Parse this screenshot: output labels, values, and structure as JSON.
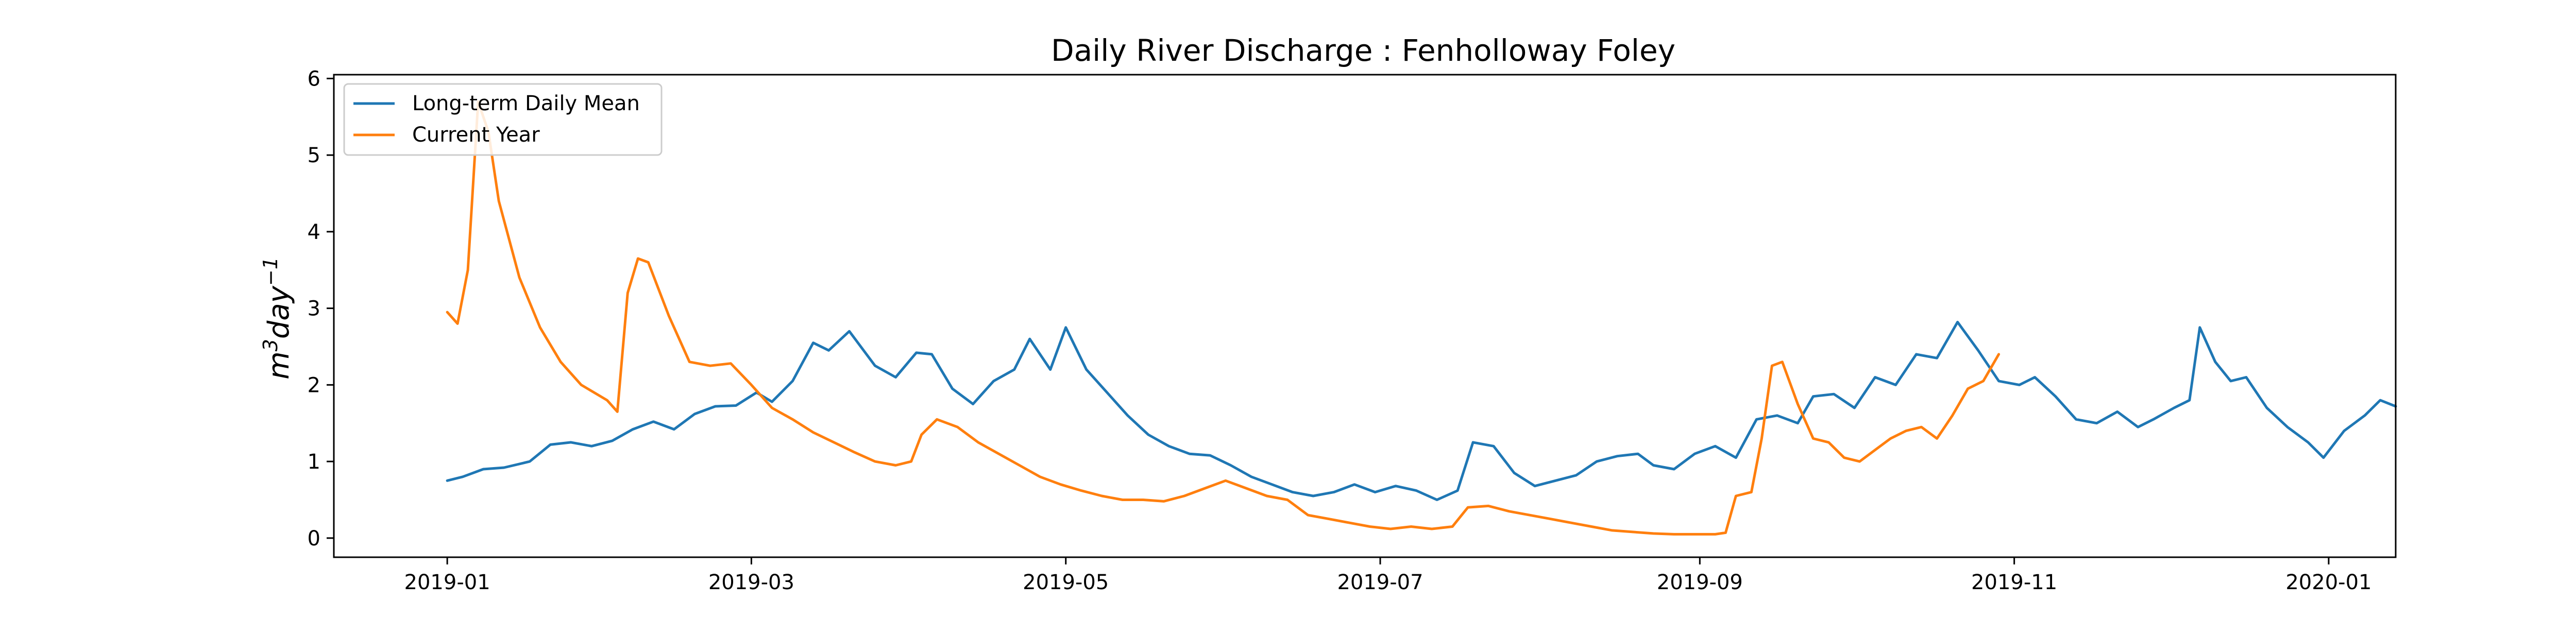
{
  "chart_data": {
    "type": "line",
    "title": "Daily River Discharge : Fenholloway Foley",
    "ylabel_base": "m",
    "ylabel_sup1": "3",
    "ylabel_mid": "day",
    "ylabel_sup2": "−1",
    "xlim": [
      "2018-12-10",
      "2020-01-14"
    ],
    "ylim": [
      -0.25,
      6.05
    ],
    "x_ticks": [
      "2019-01",
      "2019-03",
      "2019-05",
      "2019-07",
      "2019-09",
      "2019-11",
      "2020-01"
    ],
    "y_ticks": [
      "0",
      "1",
      "2",
      "3",
      "4",
      "5",
      "6"
    ],
    "legend_position": "upper-left",
    "series": [
      {
        "name": "Long-term Daily Mean",
        "color": "#1f77b4",
        "points": [
          [
            "2019-01-01",
            0.75
          ],
          [
            "2019-01-04",
            0.8
          ],
          [
            "2019-01-08",
            0.9
          ],
          [
            "2019-01-12",
            0.92
          ],
          [
            "2019-01-17",
            1.0
          ],
          [
            "2019-01-21",
            1.22
          ],
          [
            "2019-01-25",
            1.25
          ],
          [
            "2019-01-29",
            1.2
          ],
          [
            "2019-02-02",
            1.27
          ],
          [
            "2019-02-06",
            1.42
          ],
          [
            "2019-02-10",
            1.52
          ],
          [
            "2019-02-14",
            1.42
          ],
          [
            "2019-02-18",
            1.62
          ],
          [
            "2019-02-22",
            1.72
          ],
          [
            "2019-02-26",
            1.73
          ],
          [
            "2019-03-02",
            1.9
          ],
          [
            "2019-03-05",
            1.78
          ],
          [
            "2019-03-09",
            2.05
          ],
          [
            "2019-03-13",
            2.55
          ],
          [
            "2019-03-16",
            2.45
          ],
          [
            "2019-03-20",
            2.7
          ],
          [
            "2019-03-25",
            2.25
          ],
          [
            "2019-03-29",
            2.1
          ],
          [
            "2019-04-02",
            2.42
          ],
          [
            "2019-04-05",
            2.4
          ],
          [
            "2019-04-09",
            1.95
          ],
          [
            "2019-04-13",
            1.75
          ],
          [
            "2019-04-17",
            2.05
          ],
          [
            "2019-04-21",
            2.2
          ],
          [
            "2019-04-24",
            2.6
          ],
          [
            "2019-04-28",
            2.2
          ],
          [
            "2019-05-01",
            2.75
          ],
          [
            "2019-05-05",
            2.2
          ],
          [
            "2019-05-09",
            1.9
          ],
          [
            "2019-05-13",
            1.6
          ],
          [
            "2019-05-17",
            1.35
          ],
          [
            "2019-05-21",
            1.2
          ],
          [
            "2019-05-25",
            1.1
          ],
          [
            "2019-05-29",
            1.08
          ],
          [
            "2019-06-02",
            0.95
          ],
          [
            "2019-06-06",
            0.8
          ],
          [
            "2019-06-10",
            0.7
          ],
          [
            "2019-06-14",
            0.6
          ],
          [
            "2019-06-18",
            0.55
          ],
          [
            "2019-06-22",
            0.6
          ],
          [
            "2019-06-26",
            0.7
          ],
          [
            "2019-06-30",
            0.6
          ],
          [
            "2019-07-04",
            0.68
          ],
          [
            "2019-07-08",
            0.62
          ],
          [
            "2019-07-12",
            0.5
          ],
          [
            "2019-07-16",
            0.62
          ],
          [
            "2019-07-19",
            1.25
          ],
          [
            "2019-07-23",
            1.2
          ],
          [
            "2019-07-27",
            0.85
          ],
          [
            "2019-07-31",
            0.68
          ],
          [
            "2019-08-04",
            0.75
          ],
          [
            "2019-08-08",
            0.82
          ],
          [
            "2019-08-12",
            1.0
          ],
          [
            "2019-08-16",
            1.07
          ],
          [
            "2019-08-20",
            1.1
          ],
          [
            "2019-08-23",
            0.95
          ],
          [
            "2019-08-27",
            0.9
          ],
          [
            "2019-08-31",
            1.1
          ],
          [
            "2019-09-04",
            1.2
          ],
          [
            "2019-09-08",
            1.05
          ],
          [
            "2019-09-12",
            1.55
          ],
          [
            "2019-09-16",
            1.6
          ],
          [
            "2019-09-20",
            1.5
          ],
          [
            "2019-09-23",
            1.85
          ],
          [
            "2019-09-27",
            1.88
          ],
          [
            "2019-10-01",
            1.7
          ],
          [
            "2019-10-05",
            2.1
          ],
          [
            "2019-10-09",
            2.0
          ],
          [
            "2019-10-13",
            2.4
          ],
          [
            "2019-10-17",
            2.35
          ],
          [
            "2019-10-21",
            2.82
          ],
          [
            "2019-10-25",
            2.45
          ],
          [
            "2019-10-29",
            2.05
          ],
          [
            "2019-11-02",
            2.0
          ],
          [
            "2019-11-05",
            2.1
          ],
          [
            "2019-11-09",
            1.85
          ],
          [
            "2019-11-13",
            1.55
          ],
          [
            "2019-11-17",
            1.5
          ],
          [
            "2019-11-21",
            1.65
          ],
          [
            "2019-11-25",
            1.45
          ],
          [
            "2019-11-28",
            1.55
          ],
          [
            "2019-12-02",
            1.7
          ],
          [
            "2019-12-05",
            1.8
          ],
          [
            "2019-12-07",
            2.75
          ],
          [
            "2019-12-10",
            2.3
          ],
          [
            "2019-12-13",
            2.05
          ],
          [
            "2019-12-16",
            2.1
          ],
          [
            "2019-12-20",
            1.7
          ],
          [
            "2019-12-24",
            1.45
          ],
          [
            "2019-12-28",
            1.25
          ],
          [
            "2019-12-31",
            1.05
          ],
          [
            "2020-01-04",
            1.4
          ],
          [
            "2020-01-08",
            1.6
          ],
          [
            "2020-01-11",
            1.8
          ],
          [
            "2020-01-14",
            1.72
          ]
        ]
      },
      {
        "name": "Current Year",
        "color": "#ff7f0e",
        "points": [
          [
            "2019-01-01",
            2.95
          ],
          [
            "2019-01-03",
            2.8
          ],
          [
            "2019-01-05",
            3.5
          ],
          [
            "2019-01-07",
            5.7
          ],
          [
            "2019-01-09",
            5.3
          ],
          [
            "2019-01-11",
            4.4
          ],
          [
            "2019-01-15",
            3.4
          ],
          [
            "2019-01-19",
            2.75
          ],
          [
            "2019-01-23",
            2.3
          ],
          [
            "2019-01-27",
            2.0
          ],
          [
            "2019-02-01",
            1.8
          ],
          [
            "2019-02-03",
            1.65
          ],
          [
            "2019-02-05",
            3.2
          ],
          [
            "2019-02-07",
            3.65
          ],
          [
            "2019-02-09",
            3.6
          ],
          [
            "2019-02-13",
            2.9
          ],
          [
            "2019-02-17",
            2.3
          ],
          [
            "2019-02-21",
            2.25
          ],
          [
            "2019-02-25",
            2.28
          ],
          [
            "2019-03-01",
            2.0
          ],
          [
            "2019-03-05",
            1.7
          ],
          [
            "2019-03-09",
            1.55
          ],
          [
            "2019-03-13",
            1.38
          ],
          [
            "2019-03-17",
            1.25
          ],
          [
            "2019-03-21",
            1.12
          ],
          [
            "2019-03-25",
            1.0
          ],
          [
            "2019-03-29",
            0.95
          ],
          [
            "2019-04-01",
            1.0
          ],
          [
            "2019-04-03",
            1.35
          ],
          [
            "2019-04-06",
            1.55
          ],
          [
            "2019-04-10",
            1.45
          ],
          [
            "2019-04-14",
            1.25
          ],
          [
            "2019-04-18",
            1.1
          ],
          [
            "2019-04-22",
            0.95
          ],
          [
            "2019-04-26",
            0.8
          ],
          [
            "2019-04-30",
            0.7
          ],
          [
            "2019-05-04",
            0.62
          ],
          [
            "2019-05-08",
            0.55
          ],
          [
            "2019-05-12",
            0.5
          ],
          [
            "2019-05-16",
            0.5
          ],
          [
            "2019-05-20",
            0.48
          ],
          [
            "2019-05-24",
            0.55
          ],
          [
            "2019-05-28",
            0.65
          ],
          [
            "2019-06-01",
            0.75
          ],
          [
            "2019-06-05",
            0.65
          ],
          [
            "2019-06-09",
            0.55
          ],
          [
            "2019-06-13",
            0.5
          ],
          [
            "2019-06-17",
            0.3
          ],
          [
            "2019-06-21",
            0.25
          ],
          [
            "2019-06-25",
            0.2
          ],
          [
            "2019-06-29",
            0.15
          ],
          [
            "2019-07-03",
            0.12
          ],
          [
            "2019-07-07",
            0.15
          ],
          [
            "2019-07-11",
            0.12
          ],
          [
            "2019-07-15",
            0.15
          ],
          [
            "2019-07-18",
            0.4
          ],
          [
            "2019-07-22",
            0.42
          ],
          [
            "2019-07-26",
            0.35
          ],
          [
            "2019-07-30",
            0.3
          ],
          [
            "2019-08-03",
            0.25
          ],
          [
            "2019-08-07",
            0.2
          ],
          [
            "2019-08-11",
            0.15
          ],
          [
            "2019-08-15",
            0.1
          ],
          [
            "2019-08-19",
            0.08
          ],
          [
            "2019-08-23",
            0.06
          ],
          [
            "2019-08-27",
            0.05
          ],
          [
            "2019-08-31",
            0.05
          ],
          [
            "2019-09-04",
            0.05
          ],
          [
            "2019-09-06",
            0.07
          ],
          [
            "2019-09-08",
            0.55
          ],
          [
            "2019-09-11",
            0.6
          ],
          [
            "2019-09-13",
            1.3
          ],
          [
            "2019-09-15",
            2.25
          ],
          [
            "2019-09-17",
            2.3
          ],
          [
            "2019-09-20",
            1.75
          ],
          [
            "2019-09-23",
            1.3
          ],
          [
            "2019-09-26",
            1.25
          ],
          [
            "2019-09-29",
            1.05
          ],
          [
            "2019-10-02",
            1.0
          ],
          [
            "2019-10-05",
            1.15
          ],
          [
            "2019-10-08",
            1.3
          ],
          [
            "2019-10-11",
            1.4
          ],
          [
            "2019-10-14",
            1.45
          ],
          [
            "2019-10-17",
            1.3
          ],
          [
            "2019-10-20",
            1.6
          ],
          [
            "2019-10-23",
            1.95
          ],
          [
            "2019-10-26",
            2.05
          ],
          [
            "2019-10-29",
            2.4
          ]
        ]
      }
    ]
  }
}
